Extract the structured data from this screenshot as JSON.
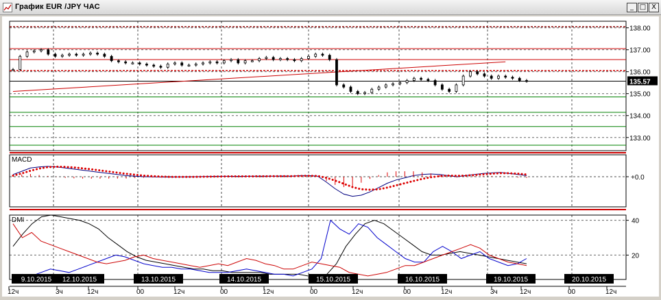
{
  "window": {
    "title": "График EUR /JPY ЧАС",
    "buttons": {
      "minimize": "_",
      "maximize": "□",
      "close": "X"
    }
  },
  "chart_data": [
    {
      "type": "candlestick",
      "panel": "price",
      "ylim": [
        132.4,
        138.3
      ],
      "y_ticks": [
        {
          "value": 138.0,
          "label": "138.00"
        },
        {
          "value": 137.0,
          "label": "137.00"
        },
        {
          "value": 136.0,
          "label": "136.00"
        },
        {
          "value": 135.0,
          "label": "135.00"
        },
        {
          "value": 134.0,
          "label": "134.00"
        },
        {
          "value": 133.0,
          "label": "133.00"
        }
      ],
      "last_price": {
        "value": 135.57,
        "label": "135.57"
      },
      "grid": true,
      "close_series": [
        136.1,
        136.7,
        136.9,
        136.95,
        137.0,
        136.8,
        136.7,
        136.75,
        136.8,
        136.75,
        136.8,
        136.85,
        136.8,
        136.7,
        136.5,
        136.45,
        136.4,
        136.4,
        136.35,
        136.3,
        136.25,
        136.2,
        136.35,
        136.4,
        136.3,
        136.3,
        136.35,
        136.4,
        136.45,
        136.4,
        136.5,
        136.55,
        136.4,
        136.5,
        136.5,
        136.6,
        136.65,
        136.55,
        136.6,
        136.55,
        136.5,
        136.6,
        136.7,
        136.8,
        136.75,
        136.55,
        135.4,
        135.3,
        135.1,
        135.0,
        135.05,
        135.2,
        135.3,
        135.4,
        135.45,
        135.5,
        135.6,
        135.7,
        135.65,
        135.6,
        135.4,
        135.2,
        135.1,
        135.4,
        135.8,
        136.0,
        135.9,
        135.8,
        135.7,
        135.8,
        135.75,
        135.7,
        135.6,
        135.57
      ],
      "horizontal_levels": [
        {
          "value": 138.05,
          "color": "#8b0000",
          "style": "dashed"
        },
        {
          "value": 137.05,
          "color": "#cc0000",
          "style": "solid"
        },
        {
          "value": 136.55,
          "color": "#cc0000",
          "style": "solid"
        },
        {
          "value": 136.05,
          "color": "#cc0000",
          "style": "dashed"
        },
        {
          "value": 135.57,
          "color": "#000000",
          "style": "solid"
        },
        {
          "value": 134.85,
          "color": "#008000",
          "style": "solid"
        },
        {
          "value": 134.15,
          "color": "#008000",
          "style": "solid"
        },
        {
          "value": 133.5,
          "color": "#008000",
          "style": "solid"
        },
        {
          "value": 132.65,
          "color": "#008000",
          "style": "solid"
        }
      ],
      "trendline": {
        "from_index": 0,
        "from_value": 135.1,
        "to_index": 70,
        "to_value": 136.45,
        "color": "#cc0000"
      }
    },
    {
      "type": "line",
      "panel": "MACD",
      "label": "MACD",
      "zero_label": "+0.0",
      "series": [
        {
          "name": "MACD",
          "color": "#000080",
          "style": "line",
          "values": [
            0.2,
            0.5,
            0.8,
            0.9,
            0.95,
            0.9,
            0.8,
            0.7,
            0.6,
            0.5,
            0.4,
            0.3,
            0.2,
            0.1,
            0.05,
            0.0,
            -0.02,
            -0.03,
            -0.03,
            -0.02,
            -0.01,
            0.0,
            0.02,
            0.03,
            0.04,
            0.03,
            0.03,
            0.04,
            0.05,
            0.05,
            0.05,
            0.06,
            0.05,
            0.1,
            0.1,
            0.05,
            -0.5,
            -1.1,
            -1.6,
            -1.8,
            -1.7,
            -1.4,
            -1.0,
            -0.6,
            -0.3,
            -0.1,
            0.1,
            0.2,
            0.25,
            0.2,
            0.1,
            0.0,
            0.1,
            0.2,
            0.3,
            0.35,
            0.4,
            0.3,
            0.2,
            0.1
          ]
        },
        {
          "name": "Signal",
          "color": "#dd0000",
          "style": "dotted",
          "values": [
            0.1,
            0.3,
            0.55,
            0.75,
            0.88,
            0.92,
            0.9,
            0.85,
            0.77,
            0.68,
            0.58,
            0.47,
            0.37,
            0.27,
            0.18,
            0.1,
            0.05,
            0.01,
            -0.01,
            -0.02,
            -0.02,
            -0.01,
            0.0,
            0.01,
            0.02,
            0.03,
            0.03,
            0.03,
            0.04,
            0.04,
            0.05,
            0.05,
            0.05,
            0.07,
            0.08,
            0.07,
            -0.1,
            -0.35,
            -0.65,
            -0.95,
            -1.15,
            -1.2,
            -1.15,
            -1.0,
            -0.8,
            -0.6,
            -0.4,
            -0.2,
            -0.05,
            0.05,
            0.1,
            0.08,
            0.1,
            0.15,
            0.22,
            0.28,
            0.33,
            0.32,
            0.28,
            0.2
          ]
        },
        {
          "name": "Histogram",
          "color": "#dd0000",
          "style": "bars",
          "values": [
            0.1,
            0.2,
            0.25,
            0.15,
            0.07,
            -0.02,
            -0.1,
            -0.15,
            -0.17,
            -0.18,
            -0.18,
            -0.17,
            -0.17,
            -0.17,
            -0.13,
            -0.1,
            -0.07,
            -0.04,
            -0.02,
            0.0,
            0.01,
            0.01,
            0.02,
            0.02,
            0.02,
            0.0,
            0.0,
            0.01,
            0.01,
            0.01,
            0.0,
            0.01,
            0.0,
            0.03,
            0.02,
            -0.02,
            -0.4,
            -0.75,
            -0.95,
            -0.85,
            -0.55,
            -0.2,
            0.15,
            0.4,
            0.5,
            0.5,
            0.5,
            0.4,
            0.3,
            0.15,
            0.0,
            -0.08,
            0.0,
            0.05,
            0.08,
            0.07,
            0.07,
            -0.02,
            -0.08,
            -0.1
          ]
        }
      ]
    },
    {
      "type": "line",
      "panel": "DMI",
      "label": "DMI",
      "y_ticks": [
        {
          "value": 40,
          "label": "40"
        },
        {
          "value": 20,
          "label": "20"
        }
      ],
      "ylim": [
        6,
        43
      ],
      "series": [
        {
          "name": "ADX",
          "color": "#000000",
          "values": [
            25,
            32,
            38,
            42,
            43,
            42,
            41,
            40,
            38,
            35,
            30,
            26,
            22,
            19,
            17,
            16,
            15,
            14,
            13,
            12,
            12,
            11,
            11,
            10,
            10,
            10,
            10,
            9,
            9,
            9,
            9,
            8,
            8,
            9,
            15,
            25,
            32,
            38,
            40,
            38,
            34,
            30,
            26,
            22,
            20,
            20,
            21,
            22,
            21,
            20,
            19,
            18,
            17,
            16,
            15
          ]
        },
        {
          "name": "+DI",
          "color": "#0000cc",
          "values": [
            8,
            9,
            8,
            10,
            12,
            11,
            10,
            12,
            14,
            16,
            18,
            20,
            19,
            17,
            15,
            14,
            13,
            13,
            12,
            12,
            11,
            10,
            10,
            10,
            11,
            12,
            11,
            10,
            9,
            9,
            8,
            10,
            12,
            18,
            40,
            35,
            32,
            38,
            36,
            30,
            26,
            22,
            18,
            16,
            16,
            22,
            25,
            22,
            18,
            20,
            22,
            18,
            16,
            14,
            15,
            18
          ]
        },
        {
          "name": "-DI",
          "color": "#cc0000",
          "values": [
            38,
            30,
            33,
            28,
            26,
            24,
            22,
            20,
            18,
            16,
            15,
            16,
            17,
            19,
            20,
            18,
            17,
            16,
            15,
            14,
            13,
            14,
            15,
            14,
            16,
            18,
            17,
            15,
            14,
            12,
            12,
            14,
            16,
            15,
            14,
            13,
            10,
            9,
            8,
            9,
            10,
            12,
            14,
            14,
            16,
            18,
            20,
            22,
            24,
            26,
            24,
            20,
            18,
            16,
            15,
            14
          ]
        }
      ]
    },
    {
      "type": "time_axis",
      "date_labels": [
        "9.10.2015",
        "12.10.2015",
        "13.10.2015",
        "14.10.2015",
        "15.10.2015",
        "16.10.2015",
        "19.10.2015",
        "20.10.2015"
      ],
      "hour_labels": [
        "12ч",
        "3ч",
        "12ч",
        "00",
        "12ч",
        "00",
        "12ч",
        "00",
        "12ч",
        "00",
        "12ч",
        "3ч",
        "12ч",
        "00",
        "12ч"
      ]
    }
  ]
}
